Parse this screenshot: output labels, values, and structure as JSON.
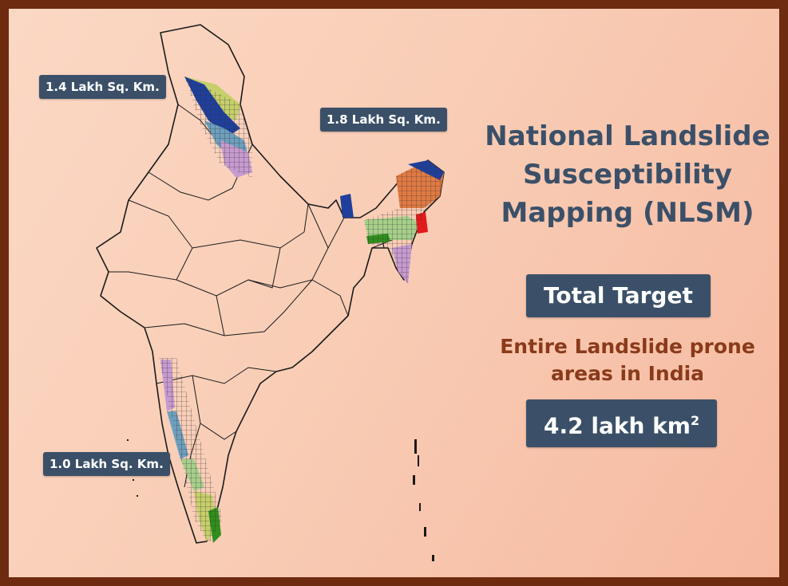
{
  "map": {
    "regions": [
      {
        "id": "north-west-himalaya",
        "label": "1.4 Lakh Sq. Km."
      },
      {
        "id": "north-east-himalaya",
        "label": "1.8 Lakh Sq. Km."
      },
      {
        "id": "western-ghats",
        "label": "1.0 Lakh Sq. Km."
      }
    ],
    "hatch_colors": {
      "dark_blue": "#1f3f9c",
      "olive_green": "#c6cf6a",
      "purple": "#c79ad0",
      "teal": "#6d9fbd",
      "orange": "#e07a43",
      "red": "#e11a1a",
      "green": "#2f8f1c",
      "light_green": "#a6cf8a"
    }
  },
  "panel": {
    "title_lines": [
      "National Landslide",
      "Susceptibility",
      "Mapping (NLSM)"
    ],
    "target_label": "Total Target",
    "subtitle_lines": [
      "Entire Landslide prone",
      "areas in India"
    ],
    "area_value": "4.2 lakh km",
    "area_sup": "2"
  },
  "colors": {
    "frame": "#6e2b0f",
    "badge": "#3b5068",
    "title": "#3b5068",
    "subtitle": "#8a3a1a"
  }
}
